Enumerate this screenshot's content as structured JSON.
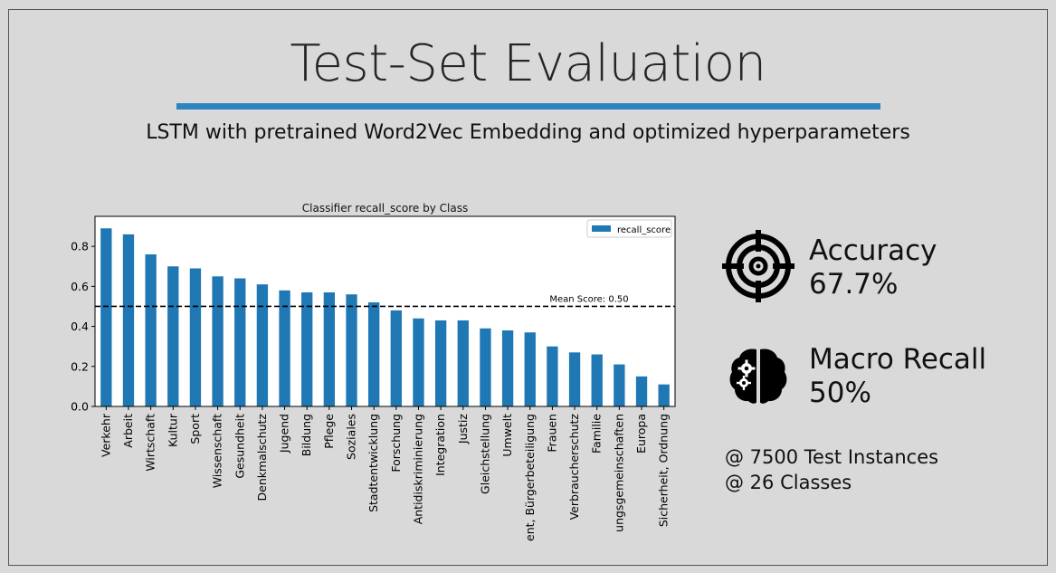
{
  "slide": {
    "title": "Test-Set Evaluation",
    "subtitle": "LSTM with pretrained Word2Vec Embedding and optimized hyperparameters",
    "accent_color": "#2e84c0"
  },
  "metrics": {
    "accuracy_label": "Accuracy",
    "accuracy_value": "67.7%",
    "recall_label": "Macro Recall",
    "recall_value": "50%",
    "target_icon": "target-crosshair-icon",
    "brain_icon": "brain-gears-icon"
  },
  "info": {
    "instances": "@ 7500 Test Instances",
    "classes": "@ 26 Classes"
  },
  "chart_data": {
    "type": "bar",
    "title": "Classifier recall_score by Class",
    "xlabel": "",
    "ylabel": "",
    "ylim": [
      0,
      0.95
    ],
    "yticks": [
      "0.0",
      "0.2",
      "0.4",
      "0.6",
      "0.8"
    ],
    "legend": {
      "label": "recall_score",
      "placement": "top-right"
    },
    "bar_color": "#1f77b4",
    "categories": [
      "Verkehr",
      "Arbeit",
      "Wirtschaft",
      "Kultur",
      "Sport",
      "Wissenschaft",
      "Gesundheit",
      "Denkmalschutz",
      "Jugend",
      "Bildung",
      "Pflege",
      "Soziales",
      "Stadtentwicklung",
      "Forschung",
      "Antidiskriminierung",
      "Integration",
      "Justiz",
      "Gleichstellung",
      "Umwelt",
      "ent, Bürgerbeteiligung",
      "Frauen",
      "Verbraucherschutz",
      "Familie",
      "ungsgemeinschaften",
      "Europa",
      "Sicherheit, Ordnung"
    ],
    "values": [
      0.89,
      0.86,
      0.76,
      0.7,
      0.69,
      0.65,
      0.64,
      0.61,
      0.58,
      0.57,
      0.57,
      0.56,
      0.52,
      0.48,
      0.44,
      0.43,
      0.43,
      0.39,
      0.38,
      0.37,
      0.3,
      0.27,
      0.26,
      0.21,
      0.15,
      0.11
    ],
    "mean_line": {
      "value": 0.5,
      "label": "Mean Score: 0.50"
    }
  }
}
